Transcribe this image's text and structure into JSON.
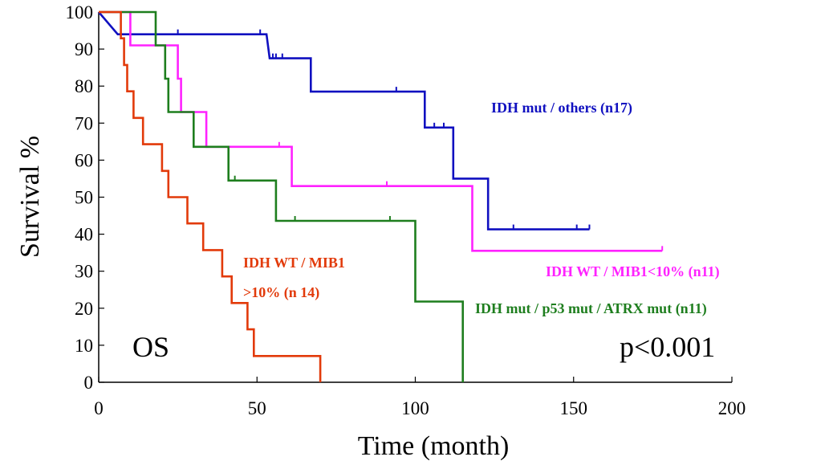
{
  "chart_data": {
    "type": "line",
    "xlabel": "Time (month)",
    "ylabel": "Survival %",
    "xlim": [
      0,
      200
    ],
    "ylim": [
      0,
      100
    ],
    "xticks": [
      "0",
      "50",
      "100",
      "150",
      "200"
    ],
    "yticks": [
      "0",
      "10",
      "20",
      "30",
      "40",
      "50",
      "60",
      "70",
      "80",
      "90",
      "100"
    ],
    "panel_label": "OS",
    "pvalue": "p<0.001",
    "grid": false,
    "series": [
      {
        "label_lines": [
          "IDH mut / others (n17)"
        ],
        "color": "#1010c0",
        "steps": [
          [
            0,
            100
          ],
          [
            6,
            94
          ],
          [
            53,
            94
          ],
          [
            54,
            87.5
          ],
          [
            67,
            87.5
          ],
          [
            67,
            78.5
          ],
          [
            103,
            78.5
          ],
          [
            103,
            68.8
          ],
          [
            112,
            68.8
          ],
          [
            112,
            55
          ],
          [
            123,
            55
          ],
          [
            123,
            41.3
          ],
          [
            155,
            41.3
          ]
        ],
        "censors": [
          [
            25,
            94
          ],
          [
            51,
            94
          ],
          [
            55,
            87.5
          ],
          [
            56,
            87.5
          ],
          [
            58,
            87.5
          ],
          [
            94,
            78.5
          ],
          [
            106,
            68.8
          ],
          [
            109,
            68.8
          ],
          [
            131,
            41.3
          ],
          [
            151,
            41.3
          ],
          [
            155,
            41.3
          ]
        ]
      },
      {
        "label_lines": [
          "IDH WT / MIB1<10% (n11)"
        ],
        "color": "#ff22ff",
        "steps": [
          [
            0,
            100
          ],
          [
            10,
            100
          ],
          [
            10,
            91
          ],
          [
            25,
            91
          ],
          [
            25,
            82
          ],
          [
            26,
            82
          ],
          [
            26,
            73
          ],
          [
            34,
            73
          ],
          [
            34,
            63.6
          ],
          [
            61,
            63.6
          ],
          [
            61,
            53
          ],
          [
            118,
            53
          ],
          [
            118,
            35.5
          ],
          [
            178,
            35.5
          ]
        ],
        "censors": [
          [
            57,
            63.6
          ],
          [
            91,
            53
          ],
          [
            178,
            35.5
          ]
        ]
      },
      {
        "label_lines": [
          "IDH mut / p53 mut / ATRX mut (n11)"
        ],
        "color": "#1e7e1e",
        "steps": [
          [
            0,
            100
          ],
          [
            18,
            100
          ],
          [
            18,
            91
          ],
          [
            21,
            91
          ],
          [
            21,
            82
          ],
          [
            22,
            82
          ],
          [
            22,
            73
          ],
          [
            30,
            73
          ],
          [
            30,
            63.6
          ],
          [
            41,
            63.6
          ],
          [
            41,
            54.5
          ],
          [
            56,
            54.5
          ],
          [
            56,
            43.6
          ],
          [
            100,
            43.6
          ],
          [
            100,
            21.8
          ],
          [
            115,
            21.8
          ],
          [
            115,
            0
          ]
        ],
        "censors": [
          [
            43,
            54.5
          ],
          [
            62,
            43.6
          ],
          [
            92,
            43.6
          ]
        ]
      },
      {
        "label_lines": [
          "IDH WT / MIB1",
          ">10% (n 14)"
        ],
        "color": "#e23a0a",
        "steps": [
          [
            0,
            100
          ],
          [
            7,
            100
          ],
          [
            7,
            92.9
          ],
          [
            8,
            92.9
          ],
          [
            8,
            85.7
          ],
          [
            9,
            85.7
          ],
          [
            9,
            78.6
          ],
          [
            11,
            78.6
          ],
          [
            11,
            71.4
          ],
          [
            14,
            71.4
          ],
          [
            14,
            64.3
          ],
          [
            20,
            64.3
          ],
          [
            20,
            57.1
          ],
          [
            22,
            57.1
          ],
          [
            22,
            50
          ],
          [
            28,
            50
          ],
          [
            28,
            42.9
          ],
          [
            33,
            42.9
          ],
          [
            33,
            35.7
          ],
          [
            39,
            35.7
          ],
          [
            39,
            28.6
          ],
          [
            42,
            28.6
          ],
          [
            42,
            21.4
          ],
          [
            47,
            21.4
          ],
          [
            47,
            14.3
          ],
          [
            49,
            14.3
          ],
          [
            49,
            7.1
          ],
          [
            70,
            7.1
          ],
          [
            70,
            0
          ]
        ],
        "censors": []
      }
    ]
  }
}
